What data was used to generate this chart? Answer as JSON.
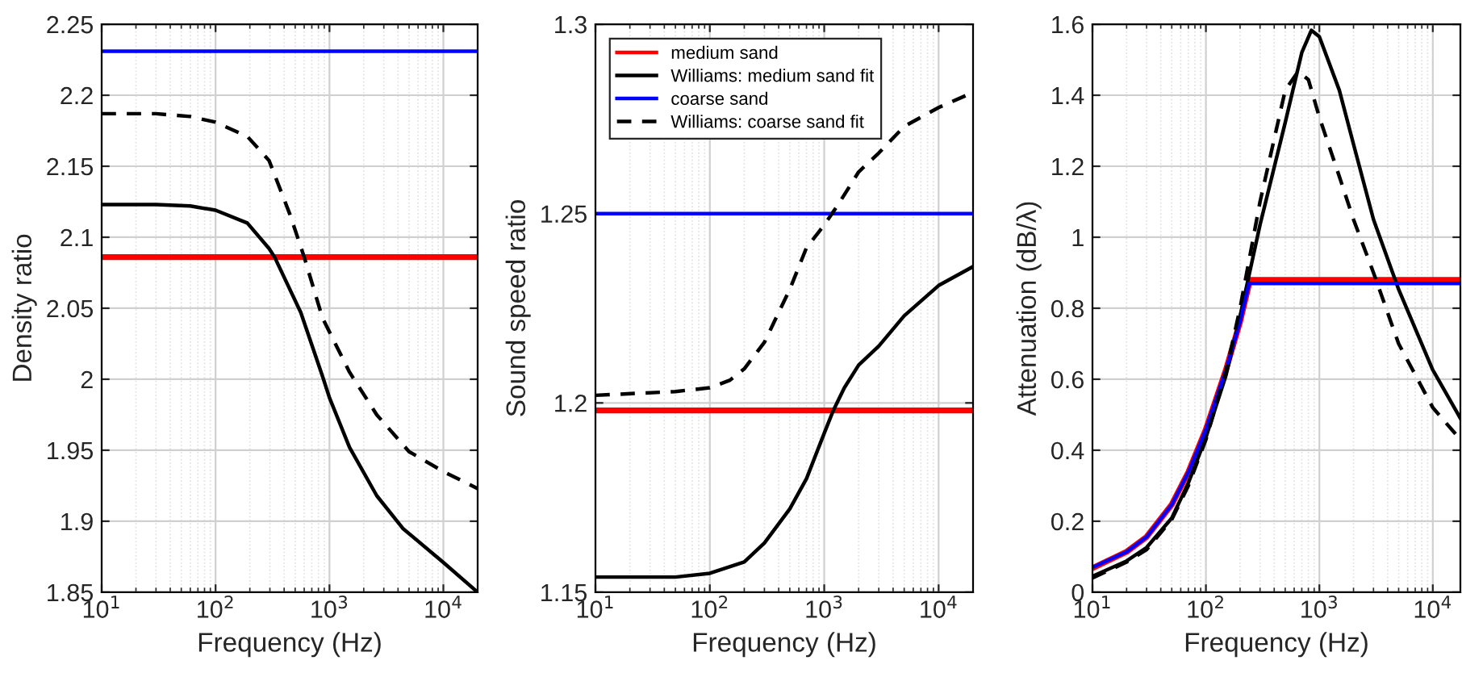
{
  "chart_data": [
    {
      "type": "line",
      "xlabel": "Frequency (Hz)",
      "ylabel": "Density ratio",
      "log": "x",
      "grid": true,
      "legend": false,
      "xlim": [
        10,
        20000
      ],
      "xticks": [
        {
          "value": 10,
          "label": "10$^{1}$"
        },
        {
          "value": 100,
          "label": "10$^{2}$"
        },
        {
          "value": 1000,
          "label": "10$^{3}$"
        },
        {
          "value": 10000,
          "label": "10$^{4}$"
        }
      ],
      "ylim": [
        1.85,
        2.25
      ],
      "yticks": [
        1.85,
        1.9,
        1.95,
        2,
        2.05,
        2.1,
        2.15,
        2.2,
        2.25
      ],
      "series": [
        {
          "color": "#ff0000",
          "line_style": "solid",
          "x": [
            10,
            20000
          ],
          "values": [
            2.086,
            2.086
          ]
        },
        {
          "color": "#000000",
          "line_style": "solid",
          "x": [
            10,
            30,
            60,
            100,
            190,
            295,
            330,
            560,
            870,
            1000,
            1500,
            2600,
            4400,
            10000,
            20000
          ],
          "values": [
            2.123,
            2.123,
            2.122,
            2.119,
            2.11,
            2.092,
            2.086,
            2.047,
            2.002,
            1.987,
            1.952,
            1.918,
            1.895,
            1.871,
            1.85
          ]
        },
        {
          "color": "#0000ff",
          "line_style": "solid",
          "x": [
            10,
            20000
          ],
          "values": [
            2.231,
            2.231
          ]
        },
        {
          "color": "#000000",
          "line_style": "dashed",
          "x": [
            10,
            30,
            60,
            100,
            190,
            295,
            450,
            600,
            870,
            1500,
            2600,
            5000,
            10000,
            20000
          ],
          "values": [
            2.187,
            2.187,
            2.185,
            2.181,
            2.171,
            2.154,
            2.116,
            2.086,
            2.043,
            2.005,
            1.975,
            1.949,
            1.935,
            1.923
          ]
        }
      ]
    },
    {
      "type": "line",
      "xlabel": "Frequency (Hz)",
      "ylabel": "Sound speed ratio",
      "log": "x",
      "grid": true,
      "legend": "top left",
      "xlim": [
        10,
        20000
      ],
      "xticks": [
        {
          "value": 10,
          "label": "10$^{1}$"
        },
        {
          "value": 100,
          "label": "10$^{2}$"
        },
        {
          "value": 1000,
          "label": "10$^{3}$"
        },
        {
          "value": 10000,
          "label": "10$^{4}$"
        }
      ],
      "ylim": [
        1.15,
        1.3
      ],
      "yticks": [
        1.15,
        1.2,
        1.25,
        1.3
      ],
      "series": [
        {
          "name": "medium sand",
          "color": "#ff0000",
          "line_style": "solid",
          "x": [
            10,
            20000
          ],
          "values": [
            1.198,
            1.198
          ]
        },
        {
          "name": "Williams: medium sand fit",
          "color": "#000000",
          "line_style": "solid",
          "x": [
            10,
            50,
            100,
            200,
            300,
            500,
            700,
            1000,
            1200,
            1500,
            2000,
            3000,
            5000,
            10000,
            20000
          ],
          "values": [
            1.154,
            1.154,
            1.155,
            1.158,
            1.163,
            1.172,
            1.18,
            1.192,
            1.198,
            1.204,
            1.21,
            1.215,
            1.223,
            1.231,
            1.236
          ]
        },
        {
          "name": "coarse sand",
          "color": "#0000ff",
          "line_style": "solid",
          "x": [
            10,
            20000
          ],
          "values": [
            1.25,
            1.25
          ]
        },
        {
          "name": "Williams: coarse sand fit",
          "color": "#000000",
          "line_style": "dashed",
          "x": [
            10,
            50,
            100,
            150,
            200,
            300,
            500,
            700,
            1000,
            1300,
            2000,
            3000,
            5000,
            10000,
            20000
          ],
          "values": [
            1.202,
            1.203,
            1.204,
            1.206,
            1.209,
            1.216,
            1.23,
            1.241,
            1.247,
            1.252,
            1.261,
            1.266,
            1.273,
            1.278,
            1.282
          ]
        }
      ]
    },
    {
      "type": "line",
      "xlabel": "Frequency (Hz)",
      "ylabel": "Attenuation (dB/λ)",
      "log": "x",
      "grid": true,
      "legend": false,
      "xlim": [
        10,
        17500
      ],
      "xticks": [
        {
          "value": 10,
          "label": "10$^{1}$"
        },
        {
          "value": 100,
          "label": "10$^{2}$"
        },
        {
          "value": 1000,
          "label": "10$^{3}$"
        },
        {
          "value": 10000,
          "label": "10$^{4}$"
        }
      ],
      "ylim": [
        0,
        1.6
      ],
      "yticks": [
        0,
        0.2,
        0.4,
        0.6,
        0.8,
        1,
        1.2,
        1.4,
        1.6
      ],
      "series": [
        {
          "color": "#ff0000",
          "line_style": "solid",
          "x": [
            10,
            20,
            30,
            50,
            70,
            100,
            150,
            200,
            245,
            17500
          ],
          "values": [
            0.068,
            0.114,
            0.156,
            0.247,
            0.338,
            0.459,
            0.626,
            0.762,
            0.88,
            0.88
          ]
        },
        {
          "color": "#000000",
          "line_style": "solid",
          "x": [
            10,
            20,
            30,
            50,
            70,
            100,
            150,
            200,
            300,
            500,
            700,
            850,
            1000,
            1500,
            2000,
            3000,
            5000,
            10000,
            17500
          ],
          "values": [
            0.045,
            0.088,
            0.126,
            0.209,
            0.308,
            0.436,
            0.61,
            0.777,
            1.035,
            1.323,
            1.52,
            1.583,
            1.565,
            1.414,
            1.262,
            1.05,
            0.853,
            0.626,
            0.49
          ]
        },
        {
          "color": "#0000ff",
          "line_style": "solid",
          "x": [
            10,
            20,
            30,
            50,
            70,
            100,
            150,
            200,
            240,
            17500
          ],
          "values": [
            0.07,
            0.114,
            0.156,
            0.247,
            0.338,
            0.459,
            0.626,
            0.762,
            0.87,
            0.87
          ]
        },
        {
          "color": "#000000",
          "line_style": "dashed",
          "x": [
            10,
            20,
            30,
            50,
            70,
            100,
            150,
            200,
            300,
            500,
            650,
            800,
            1000,
            1500,
            2000,
            3000,
            5000,
            10000,
            17500
          ],
          "values": [
            0.04,
            0.085,
            0.12,
            0.205,
            0.3,
            0.43,
            0.62,
            0.8,
            1.1,
            1.414,
            1.467,
            1.444,
            1.338,
            1.171,
            1.05,
            0.9,
            0.7,
            0.52,
            0.43
          ]
        }
      ]
    }
  ]
}
